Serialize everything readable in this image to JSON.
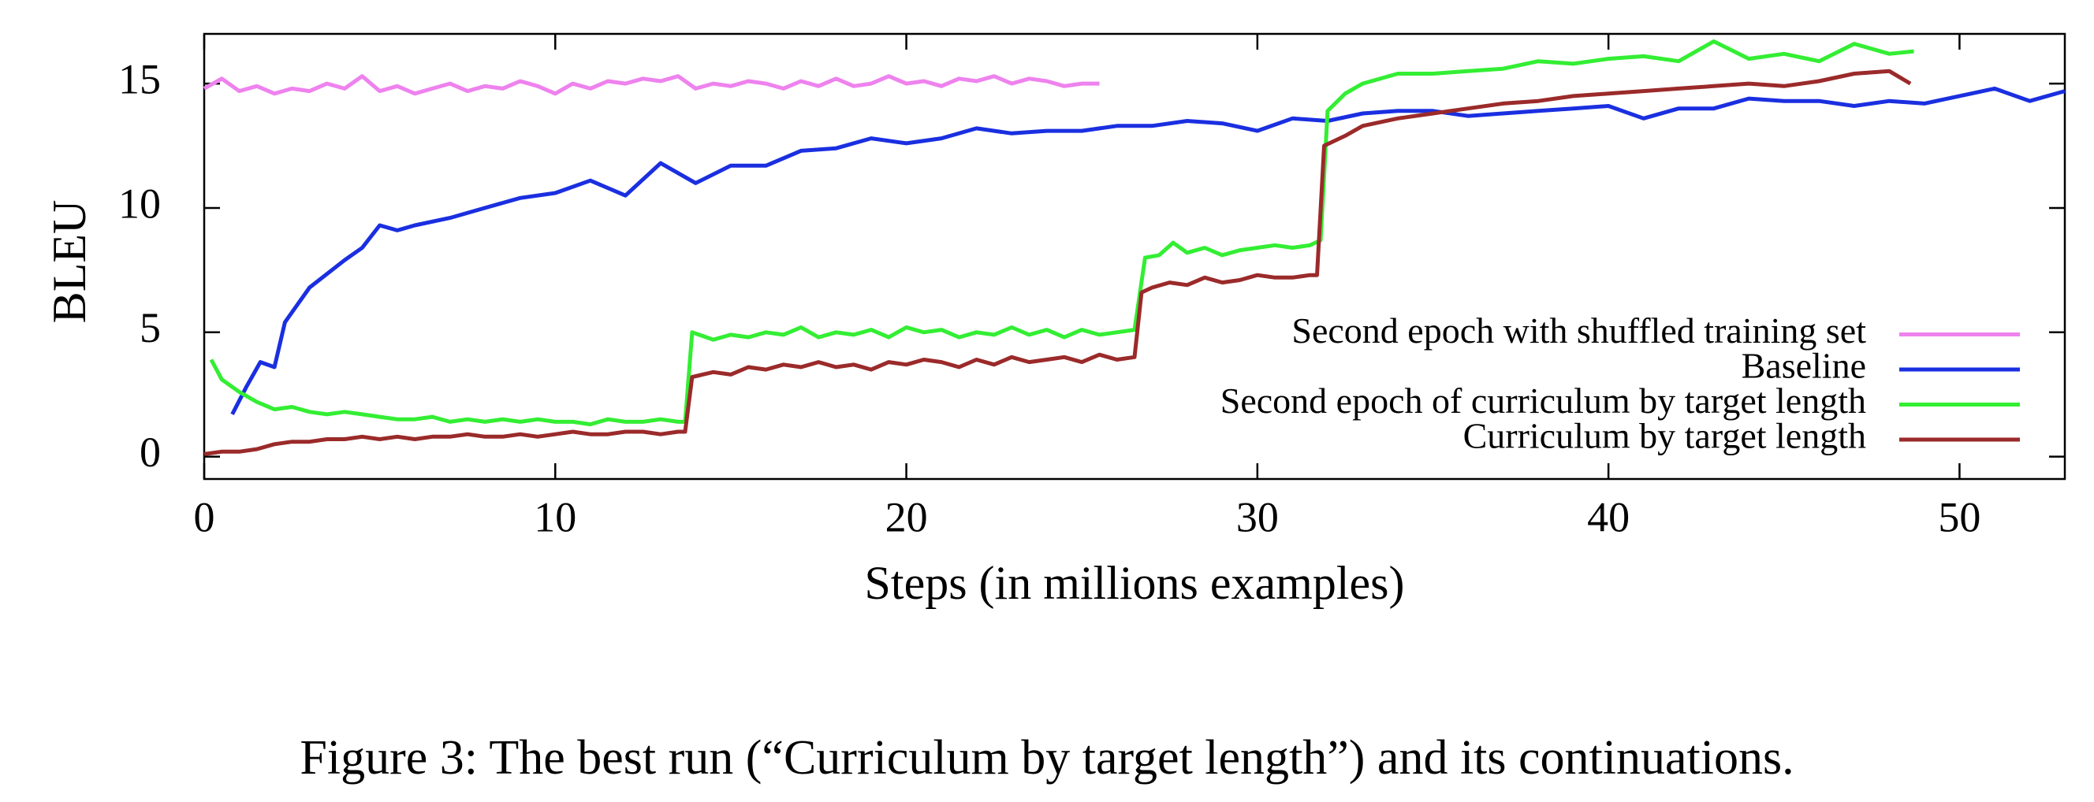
{
  "chart_data": {
    "type": "line",
    "xlabel": "Steps (in millions examples)",
    "ylabel": "BLEU",
    "caption": "Figure 3: The best run (“Curriculum by target length”) and its continuations.",
    "xlim": [
      0,
      53
    ],
    "ylim": [
      -0.9,
      17
    ],
    "xticks": [
      0,
      10,
      20,
      30,
      40,
      50
    ],
    "yticks": [
      0,
      5,
      10,
      15
    ],
    "legend": "lower right",
    "series": [
      {
        "name": "Second epoch with shuffled training set",
        "color": "#ee82ee",
        "x": [
          0,
          0.5,
          1,
          1.5,
          2,
          2.5,
          3,
          3.5,
          4,
          4.5,
          5,
          5.5,
          6,
          6.5,
          7,
          7.5,
          8,
          8.5,
          9,
          9.5,
          10,
          10.5,
          11,
          11.5,
          12,
          12.5,
          13,
          13.5,
          14,
          14.5,
          15,
          15.5,
          16,
          16.5,
          17,
          17.5,
          18,
          18.5,
          19,
          19.5,
          20,
          20.5,
          21,
          21.5,
          22,
          22.5,
          23,
          23.5,
          24,
          24.5,
          25,
          25.5
        ],
        "values": [
          14.8,
          15.2,
          14.7,
          14.9,
          14.6,
          14.8,
          14.7,
          15.0,
          14.8,
          15.3,
          14.7,
          14.9,
          14.6,
          14.8,
          15.0,
          14.7,
          14.9,
          14.8,
          15.1,
          14.9,
          14.6,
          15.0,
          14.8,
          15.1,
          15.0,
          15.2,
          15.1,
          15.3,
          14.8,
          15.0,
          14.9,
          15.1,
          15.0,
          14.8,
          15.1,
          14.9,
          15.2,
          14.9,
          15.0,
          15.3,
          15.0,
          15.1,
          14.9,
          15.2,
          15.1,
          15.3,
          15.0,
          15.2,
          15.1,
          14.9,
          15.0,
          15.0
        ]
      },
      {
        "name": "Baseline",
        "color": "#1a2fe0",
        "x": [
          0.8,
          1.2,
          1.6,
          2,
          2.3,
          3,
          4,
          4.5,
          5,
          5.5,
          6,
          7,
          8,
          9,
          10,
          11,
          12,
          13,
          14,
          15,
          16,
          17,
          18,
          19,
          20,
          21,
          22,
          23,
          24,
          25,
          26,
          27,
          28,
          29,
          30,
          31,
          32,
          33,
          34,
          35,
          36,
          37,
          38,
          39,
          40,
          41,
          42,
          43,
          44,
          45,
          46,
          47,
          48,
          49,
          50,
          51,
          52,
          53
        ],
        "values": [
          1.7,
          2.8,
          3.8,
          3.6,
          5.4,
          6.8,
          7.9,
          8.4,
          9.3,
          9.1,
          9.3,
          9.6,
          10.0,
          10.4,
          10.6,
          11.1,
          10.5,
          11.8,
          11.0,
          11.7,
          11.7,
          12.3,
          12.4,
          12.8,
          12.6,
          12.8,
          13.2,
          13.0,
          13.1,
          13.1,
          13.3,
          13.3,
          13.5,
          13.4,
          13.1,
          13.6,
          13.5,
          13.8,
          13.9,
          13.9,
          13.7,
          13.8,
          13.9,
          14.0,
          14.1,
          13.6,
          14.0,
          14.0,
          14.4,
          14.3,
          14.3,
          14.1,
          14.3,
          14.2,
          14.5,
          14.8,
          14.3,
          14.7
        ]
      },
      {
        "name": "Second epoch of curriculum by target length",
        "color": "#33ee33",
        "x": [
          0.2,
          0.5,
          1,
          1.5,
          2,
          2.5,
          3,
          3.5,
          4,
          4.5,
          5,
          5.5,
          6,
          6.5,
          7,
          7.5,
          8,
          8.5,
          9,
          9.5,
          10,
          10.5,
          11,
          11.5,
          12,
          12.5,
          13,
          13.5,
          13.7,
          13.9,
          14.5,
          15,
          15.5,
          16,
          16.5,
          17,
          17.5,
          18,
          18.5,
          19,
          19.5,
          20,
          20.5,
          21,
          21.5,
          22,
          22.5,
          23,
          23.5,
          24,
          24.5,
          25,
          25.5,
          26,
          26.5,
          26.8,
          27.2,
          27.6,
          28,
          28.5,
          29,
          29.5,
          30,
          30.5,
          31,
          31.5,
          31.8,
          32,
          32.5,
          33,
          34,
          35,
          36,
          37,
          38,
          39,
          40,
          41,
          42,
          43,
          44,
          45,
          46,
          47,
          48,
          48.7
        ],
        "values": [
          3.9,
          3.1,
          2.6,
          2.2,
          1.9,
          2.0,
          1.8,
          1.7,
          1.8,
          1.7,
          1.6,
          1.5,
          1.5,
          1.6,
          1.4,
          1.5,
          1.4,
          1.5,
          1.4,
          1.5,
          1.4,
          1.4,
          1.3,
          1.5,
          1.4,
          1.4,
          1.5,
          1.4,
          1.4,
          5.0,
          4.7,
          4.9,
          4.8,
          5.0,
          4.9,
          5.2,
          4.8,
          5.0,
          4.9,
          5.1,
          4.8,
          5.2,
          5.0,
          5.1,
          4.8,
          5.0,
          4.9,
          5.2,
          4.9,
          5.1,
          4.8,
          5.1,
          4.9,
          5.0,
          5.1,
          8.0,
          8.1,
          8.6,
          8.2,
          8.4,
          8.1,
          8.3,
          8.4,
          8.5,
          8.4,
          8.5,
          8.7,
          13.9,
          14.6,
          15.0,
          15.4,
          15.4,
          15.5,
          15.6,
          15.9,
          15.8,
          16.0,
          16.1,
          15.9,
          16.7,
          16.0,
          16.2,
          15.9,
          16.6,
          16.2,
          16.3
        ]
      },
      {
        "name": "Curriculum by target length",
        "color": "#9b2a2a",
        "x": [
          0,
          0.5,
          1,
          1.5,
          2,
          2.5,
          3,
          3.5,
          4,
          4.5,
          5,
          5.5,
          6,
          6.5,
          7,
          7.5,
          8,
          8.5,
          9,
          9.5,
          10,
          10.5,
          11,
          11.5,
          12,
          12.5,
          13,
          13.5,
          13.7,
          13.9,
          14.5,
          15,
          15.5,
          16,
          16.5,
          17,
          17.5,
          18,
          18.5,
          19,
          19.5,
          20,
          20.5,
          21,
          21.5,
          22,
          22.5,
          23,
          23.5,
          24,
          24.5,
          25,
          25.5,
          26,
          26.5,
          26.7,
          27,
          27.5,
          28,
          28.5,
          29,
          29.5,
          30,
          30.5,
          31,
          31.5,
          31.7,
          31.9,
          32.5,
          33,
          34,
          35,
          36,
          37,
          38,
          39,
          40,
          41,
          42,
          43,
          44,
          45,
          46,
          47,
          48,
          48.6
        ],
        "values": [
          0.1,
          0.2,
          0.2,
          0.3,
          0.5,
          0.6,
          0.6,
          0.7,
          0.7,
          0.8,
          0.7,
          0.8,
          0.7,
          0.8,
          0.8,
          0.9,
          0.8,
          0.8,
          0.9,
          0.8,
          0.9,
          1.0,
          0.9,
          0.9,
          1.0,
          1.0,
          0.9,
          1.0,
          1.0,
          3.2,
          3.4,
          3.3,
          3.6,
          3.5,
          3.7,
          3.6,
          3.8,
          3.6,
          3.7,
          3.5,
          3.8,
          3.7,
          3.9,
          3.8,
          3.6,
          3.9,
          3.7,
          4.0,
          3.8,
          3.9,
          4.0,
          3.8,
          4.1,
          3.9,
          4.0,
          6.6,
          6.8,
          7.0,
          6.9,
          7.2,
          7.0,
          7.1,
          7.3,
          7.2,
          7.2,
          7.3,
          7.3,
          12.5,
          12.9,
          13.3,
          13.6,
          13.8,
          14.0,
          14.2,
          14.3,
          14.5,
          14.6,
          14.7,
          14.8,
          14.9,
          15.0,
          14.9,
          15.1,
          15.4,
          15.5,
          15.0
        ]
      }
    ]
  }
}
